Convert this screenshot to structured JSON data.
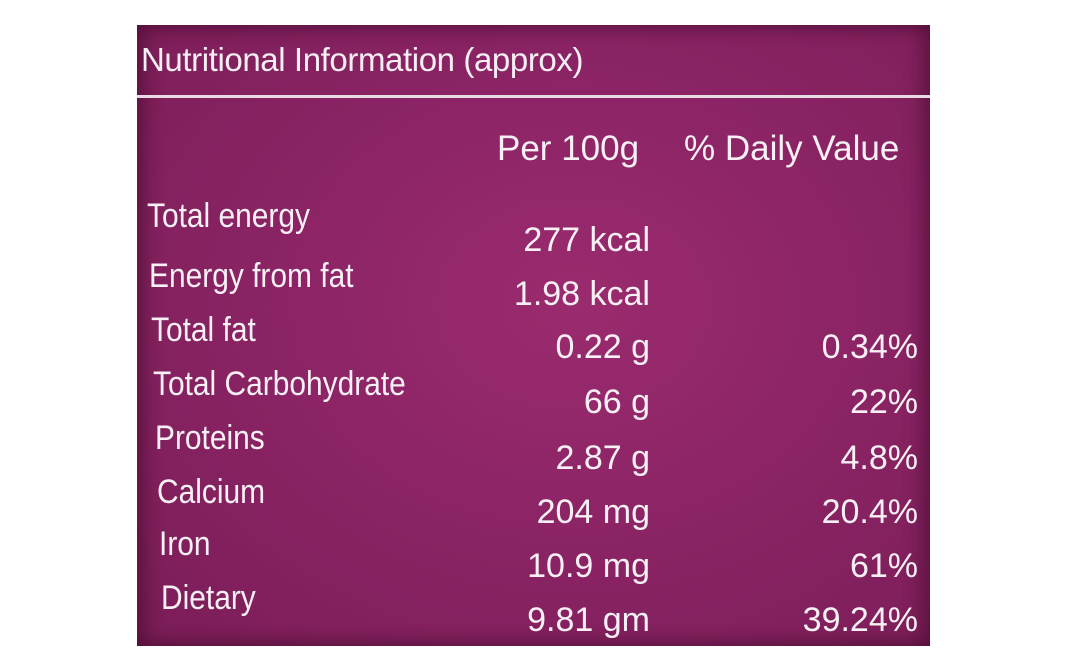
{
  "label": {
    "title": "Nutritional Information (approx)",
    "columns": {
      "per_100g": "Per 100g",
      "daily_value": "% Daily Value"
    },
    "rows": [
      {
        "nutrient": "Total energy",
        "per_100g": "277 kcal",
        "daily_value": ""
      },
      {
        "nutrient": "Energy from fat",
        "per_100g": "1.98 kcal",
        "daily_value": ""
      },
      {
        "nutrient": "Total fat",
        "per_100g": "0.22 g",
        "daily_value": "0.34%"
      },
      {
        "nutrient": "Total Carbohydrate",
        "per_100g": "66 g",
        "daily_value": "22%"
      },
      {
        "nutrient": "Proteins",
        "per_100g": "2.87 g",
        "daily_value": "4.8%"
      },
      {
        "nutrient": "Calcium",
        "per_100g": "204 mg",
        "daily_value": "20.4%"
      },
      {
        "nutrient": "Iron",
        "per_100g": "10.9 mg",
        "daily_value": "61%"
      },
      {
        "nutrient": "Dietary",
        "per_100g": "9.81 gm",
        "daily_value": "39.24%"
      }
    ],
    "background_color": "#8c2465",
    "text_color": "#f8f0f5"
  }
}
